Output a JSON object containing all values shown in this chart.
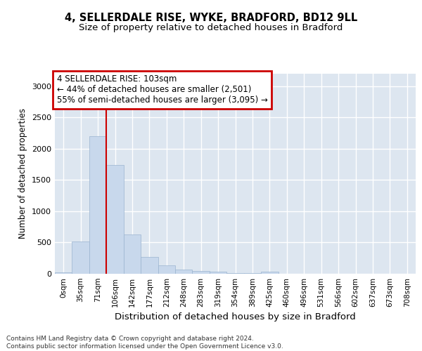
{
  "title_line1": "4, SELLERDALE RISE, WYKE, BRADFORD, BD12 9LL",
  "title_line2": "Size of property relative to detached houses in Bradford",
  "xlabel": "Distribution of detached houses by size in Bradford",
  "ylabel": "Number of detached properties",
  "bin_labels": [
    "0sqm",
    "35sqm",
    "71sqm",
    "106sqm",
    "142sqm",
    "177sqm",
    "212sqm",
    "248sqm",
    "283sqm",
    "319sqm",
    "354sqm",
    "389sqm",
    "425sqm",
    "460sqm",
    "496sqm",
    "531sqm",
    "566sqm",
    "602sqm",
    "637sqm",
    "673sqm",
    "708sqm"
  ],
  "bar_values": [
    20,
    520,
    2200,
    1740,
    630,
    270,
    140,
    70,
    45,
    30,
    15,
    8,
    30,
    2,
    0,
    0,
    0,
    0,
    0,
    0,
    0
  ],
  "bar_color": "#c8d8ec",
  "bar_edgecolor": "#9ab4d0",
  "vline_x": 2.5,
  "vline_color": "#cc0000",
  "annotation_text": "4 SELLERDALE RISE: 103sqm\n← 44% of detached houses are smaller (2,501)\n55% of semi-detached houses are larger (3,095) →",
  "annotation_box_color": "#cc0000",
  "annotation_facecolor": "white",
  "ylim": [
    0,
    3200
  ],
  "yticks": [
    0,
    500,
    1000,
    1500,
    2000,
    2500,
    3000
  ],
  "grid_color": "white",
  "background_color": "#dde6f0",
  "footer_text": "Contains HM Land Registry data © Crown copyright and database right 2024.\nContains public sector information licensed under the Open Government Licence v3.0.",
  "title_fontsize": 10.5,
  "subtitle_fontsize": 9.5,
  "xlabel_fontsize": 9.5,
  "ylabel_fontsize": 8.5,
  "tick_fontsize": 7.5,
  "ann_fontsize": 8.5,
  "footer_fontsize": 6.5
}
